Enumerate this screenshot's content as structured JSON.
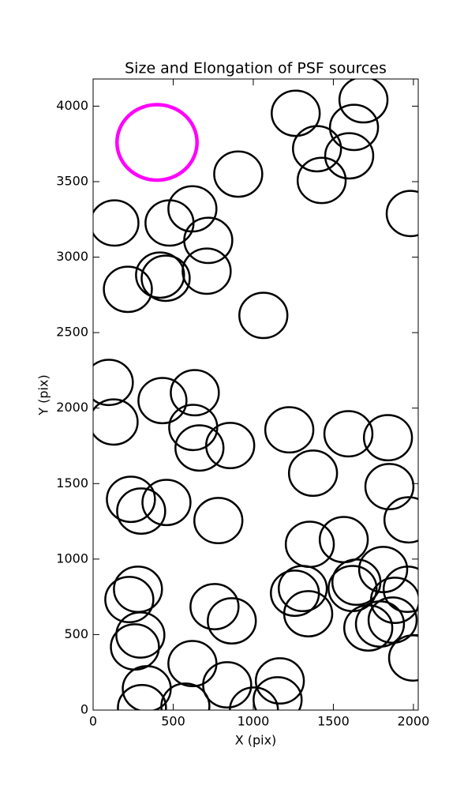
{
  "chart_data": {
    "type": "ellipses",
    "title": "Size and Elongation of PSF sources",
    "x_label": "X (pix)",
    "y_label": "Y (pix)",
    "xlim": [
      0,
      2030
    ],
    "ylim": [
      0,
      4180
    ],
    "xticks": [
      0,
      500,
      1000,
      1500,
      2000
    ],
    "yticks": [
      0,
      500,
      1000,
      1500,
      2000,
      2500,
      3000,
      3500,
      4000
    ],
    "series": [
      {
        "color": "#000000",
        "size": 300,
        "x": [
          1265,
          1688,
          1398,
          1629,
          1599,
          1427,
          906,
          133,
          620,
          477,
          719,
          1983,
          418,
          453,
          709,
          217,
          1063,
          98,
          128,
          433,
          635,
          625,
          664,
          856,
          1225,
          1594,
          1841,
          1373,
          1850,
          1969,
          236,
          300,
          458,
          782,
          1353,
          1565,
          1811,
          1644,
          1620,
          1260,
          1309,
          1343,
          1964,
          1885,
          1870,
          1791,
          1718,
          280,
          226,
          295,
          261,
          758,
          866,
          620,
          837,
          1166,
          1152,
          335,
          305,
          576,
          1004,
          1998
        ],
        "y": [
          3953,
          4042,
          3718,
          3859,
          3671,
          3508,
          3550,
          3226,
          3320,
          3226,
          3111,
          3289,
          2881,
          2860,
          2907,
          2787,
          2614,
          2170,
          1908,
          2050,
          2102,
          1872,
          1736,
          1752,
          1856,
          1830,
          1804,
          1569,
          1480,
          1260,
          1396,
          1318,
          1375,
          1255,
          1098,
          1129,
          931,
          847,
          805,
          774,
          805,
          638,
          800,
          727,
          596,
          570,
          544,
          800,
          732,
          497,
          418,
          685,
          591,
          308,
          167,
          193,
          68,
          141,
          16,
          26,
          0,
          345
        ]
      },
      {
        "color": "#ff00ff",
        "size": 500,
        "x": [
          399
        ],
        "y": [
          3760
        ]
      }
    ]
  }
}
